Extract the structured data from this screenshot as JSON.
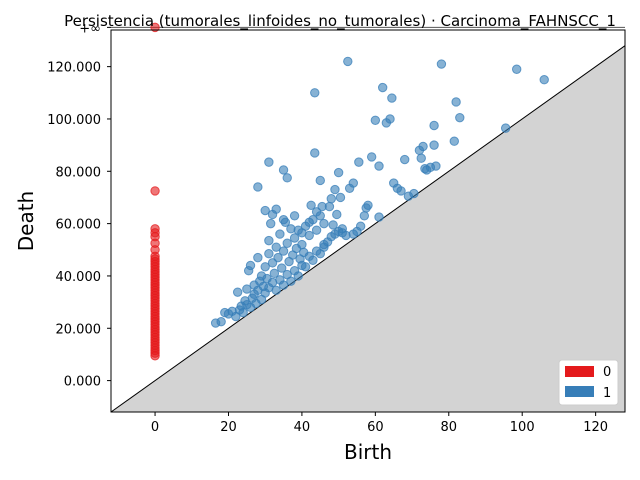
{
  "chart_data": {
    "type": "scatter",
    "title": "Persistencia (tumorales_linfoides_no_tumorales) · Carcinoma_FAHNSCC_1",
    "xlabel": "Birth",
    "ylabel": "Death",
    "xlim": [
      -12,
      128
    ],
    "ylim": [
      -12000,
      134000
    ],
    "infinity_level": 135000,
    "infinity_label": "+∞",
    "x_ticks": [
      0,
      20,
      40,
      60,
      80,
      100,
      120
    ],
    "x_tick_labels": [
      "0",
      "20",
      "40",
      "60",
      "80",
      "100",
      "120"
    ],
    "y_ticks": [
      0,
      20000,
      40000,
      60000,
      80000,
      100000,
      120000
    ],
    "y_tick_labels": [
      "0.000",
      "20.000",
      "40.000",
      "60.000",
      "80.000",
      "100.000",
      "120.000"
    ],
    "colors": {
      "0": "#e41a1c",
      "1": "#377eb8",
      "diagonal_fill": "#d3d3d3"
    },
    "legend": {
      "placement": "lower-right",
      "entries": [
        {
          "label": "0"
        },
        {
          "label": "1"
        }
      ]
    },
    "series": [
      {
        "name": "0",
        "points": [
          [
            0,
            135000
          ],
          [
            0,
            72500
          ],
          [
            0,
            58000
          ],
          [
            0,
            56500
          ],
          [
            0,
            55000
          ],
          [
            0,
            52500
          ],
          [
            0,
            50000
          ],
          [
            0,
            47500
          ],
          [
            0,
            46500
          ],
          [
            0,
            45500
          ],
          [
            0,
            44500
          ],
          [
            0,
            43500
          ],
          [
            0,
            42500
          ],
          [
            0,
            41500
          ],
          [
            0,
            40500
          ],
          [
            0,
            39500
          ],
          [
            0,
            38500
          ],
          [
            0,
            37500
          ],
          [
            0,
            36500
          ],
          [
            0,
            35500
          ],
          [
            0,
            34500
          ],
          [
            0,
            33500
          ],
          [
            0,
            32500
          ],
          [
            0,
            31500
          ],
          [
            0,
            30500
          ],
          [
            0,
            29500
          ],
          [
            0,
            28500
          ],
          [
            0,
            27500
          ],
          [
            0,
            26500
          ],
          [
            0,
            25500
          ],
          [
            0,
            24500
          ],
          [
            0,
            23500
          ],
          [
            0,
            22500
          ],
          [
            0,
            21500
          ],
          [
            0,
            20500
          ],
          [
            0,
            19500
          ],
          [
            0,
            18500
          ],
          [
            0,
            17500
          ],
          [
            0,
            16500
          ],
          [
            0,
            15500
          ],
          [
            0,
            14500
          ],
          [
            0,
            13500
          ],
          [
            0,
            12500
          ],
          [
            0,
            11500
          ],
          [
            0,
            10500
          ],
          [
            0,
            9500
          ]
        ]
      },
      {
        "name": "1",
        "points": [
          [
            16.5,
            22000
          ],
          [
            18,
            22500
          ],
          [
            19,
            26000
          ],
          [
            20,
            25500
          ],
          [
            21,
            26500
          ],
          [
            22,
            24500
          ],
          [
            22.5,
            33800
          ],
          [
            23,
            27000
          ],
          [
            23.5,
            28500
          ],
          [
            24,
            26000
          ],
          [
            24.5,
            30500
          ],
          [
            25,
            29000
          ],
          [
            25,
            35000
          ],
          [
            25.5,
            42000
          ],
          [
            26,
            28000
          ],
          [
            26,
            44000
          ],
          [
            26.5,
            31500
          ],
          [
            27,
            33000
          ],
          [
            27,
            36500
          ],
          [
            27.5,
            29500
          ],
          [
            28,
            34500
          ],
          [
            28,
            47000
          ],
          [
            28.5,
            38000
          ],
          [
            29,
            31000
          ],
          [
            29,
            40000
          ],
          [
            29.5,
            36000
          ],
          [
            30,
            33500
          ],
          [
            30,
            43500
          ],
          [
            30.5,
            39000
          ],
          [
            31,
            35500
          ],
          [
            31,
            48500
          ],
          [
            31,
            53500
          ],
          [
            31.5,
            60000
          ],
          [
            32,
            37500
          ],
          [
            32,
            45000
          ],
          [
            32,
            63500
          ],
          [
            32.5,
            41000
          ],
          [
            33,
            34500
          ],
          [
            33,
            51000
          ],
          [
            33.5,
            47000
          ],
          [
            34,
            38500
          ],
          [
            34,
            56000
          ],
          [
            34.5,
            43000
          ],
          [
            35,
            36500
          ],
          [
            35,
            49500
          ],
          [
            35.5,
            60500
          ],
          [
            36,
            40500
          ],
          [
            36,
            52500
          ],
          [
            36.5,
            45500
          ],
          [
            37,
            38000
          ],
          [
            37,
            58000
          ],
          [
            37.5,
            48000
          ],
          [
            38,
            42000
          ],
          [
            38,
            54500
          ],
          [
            38.5,
            50500
          ],
          [
            39,
            40000
          ],
          [
            39,
            57500
          ],
          [
            39.5,
            46500
          ],
          [
            40,
            44000
          ],
          [
            40,
            52000
          ],
          [
            40.5,
            49000
          ],
          [
            41,
            43500
          ],
          [
            41,
            59000
          ],
          [
            42,
            47500
          ],
          [
            42,
            55500
          ],
          [
            42.5,
            67000
          ],
          [
            43,
            46000
          ],
          [
            43,
            61500
          ],
          [
            44,
            49500
          ],
          [
            44,
            57500
          ],
          [
            45,
            48500
          ],
          [
            45,
            63000
          ],
          [
            45.5,
            66500
          ],
          [
            46,
            52000
          ],
          [
            46,
            60000
          ],
          [
            47,
            53000
          ],
          [
            47.5,
            66500
          ],
          [
            48,
            55000
          ],
          [
            48.5,
            59500
          ],
          [
            49,
            56000
          ],
          [
            49.5,
            63500
          ],
          [
            50,
            57000
          ],
          [
            50.5,
            70000
          ],
          [
            51,
            58000
          ],
          [
            52,
            55500
          ],
          [
            53,
            73500
          ],
          [
            54,
            75500
          ],
          [
            55,
            57000
          ],
          [
            55.5,
            83500
          ],
          [
            56,
            59000
          ],
          [
            57.5,
            66000
          ],
          [
            58,
            67000
          ],
          [
            59,
            85500
          ],
          [
            61,
            62500
          ],
          [
            61,
            82000
          ],
          [
            62,
            112000
          ],
          [
            63,
            98500
          ],
          [
            64,
            100000
          ],
          [
            64.5,
            108000
          ],
          [
            65,
            75500
          ],
          [
            66,
            73500
          ],
          [
            67,
            72500
          ],
          [
            68,
            84500
          ],
          [
            69,
            70500
          ],
          [
            70.5,
            71500
          ],
          [
            72,
            88000
          ],
          [
            72.5,
            85000
          ],
          [
            73,
            89500
          ],
          [
            73.5,
            81000
          ],
          [
            74,
            80500
          ],
          [
            75,
            81500
          ],
          [
            76,
            97500
          ],
          [
            76,
            90000
          ],
          [
            76.5,
            82000
          ],
          [
            78,
            121000
          ],
          [
            81.5,
            91500
          ],
          [
            82,
            106500
          ],
          [
            83,
            100500
          ],
          [
            95.5,
            96500
          ],
          [
            98.5,
            119000
          ],
          [
            106,
            115000
          ],
          [
            52.5,
            122000
          ],
          [
            43.5,
            110000
          ],
          [
            43.5,
            87000
          ],
          [
            35,
            80500
          ],
          [
            36,
            77500
          ],
          [
            45,
            76500
          ],
          [
            50,
            79500
          ],
          [
            28,
            74000
          ],
          [
            31,
            83500
          ],
          [
            60,
            99500
          ],
          [
            49,
            73000
          ],
          [
            48,
            69500
          ],
          [
            44,
            64500
          ],
          [
            42,
            60500
          ],
          [
            38,
            63000
          ],
          [
            30,
            65000
          ],
          [
            33,
            65500
          ],
          [
            35,
            61500
          ],
          [
            40,
            56500
          ],
          [
            46,
            51000
          ],
          [
            51,
            56500
          ],
          [
            54,
            56000
          ],
          [
            57,
            63000
          ]
        ]
      }
    ]
  }
}
